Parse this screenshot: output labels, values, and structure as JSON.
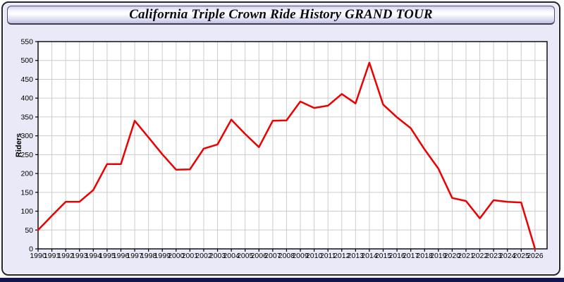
{
  "window": {
    "title": "California Triple Crown Ride History GRAND TOUR"
  },
  "colors": {
    "body_bg": "#e9e9f7",
    "plot_bg": "#ffffff",
    "grid": "#cccccc",
    "axis": "#000000",
    "line": "#ee0000",
    "window_border": "#26262e",
    "bottom_strip": "#14144e"
  },
  "chart_data": {
    "type": "line",
    "title": "California Triple Crown Ride History GRAND TOUR",
    "xlabel": "",
    "ylabel": "Riders",
    "grid": true,
    "legend": "none",
    "ylim": [
      0,
      550
    ],
    "ytick_step": 50,
    "line_color": "#ee0000",
    "categories": [
      "1990",
      "1991",
      "1992",
      "1993",
      "1994",
      "1995",
      "1996",
      "1997",
      "1998",
      "1999",
      "2000",
      "2001",
      "2002",
      "2003",
      "2004",
      "2005",
      "2006",
      "2007",
      "2008",
      "2009",
      "2010",
      "2011",
      "2012",
      "2013",
      "2014",
      "2015",
      "2016",
      "2017",
      "2018",
      "2019",
      "2020",
      "2021",
      "2022",
      "2023",
      "2024",
      "2025",
      "2026"
    ],
    "values": [
      50,
      88,
      125,
      125,
      156,
      225,
      225,
      340,
      296,
      251,
      210,
      211,
      266,
      277,
      343,
      305,
      270,
      340,
      341,
      391,
      374,
      380,
      411,
      386,
      494,
      383,
      349,
      320,
      264,
      213,
      135,
      127,
      81,
      129,
      125,
      123,
      0
    ]
  }
}
